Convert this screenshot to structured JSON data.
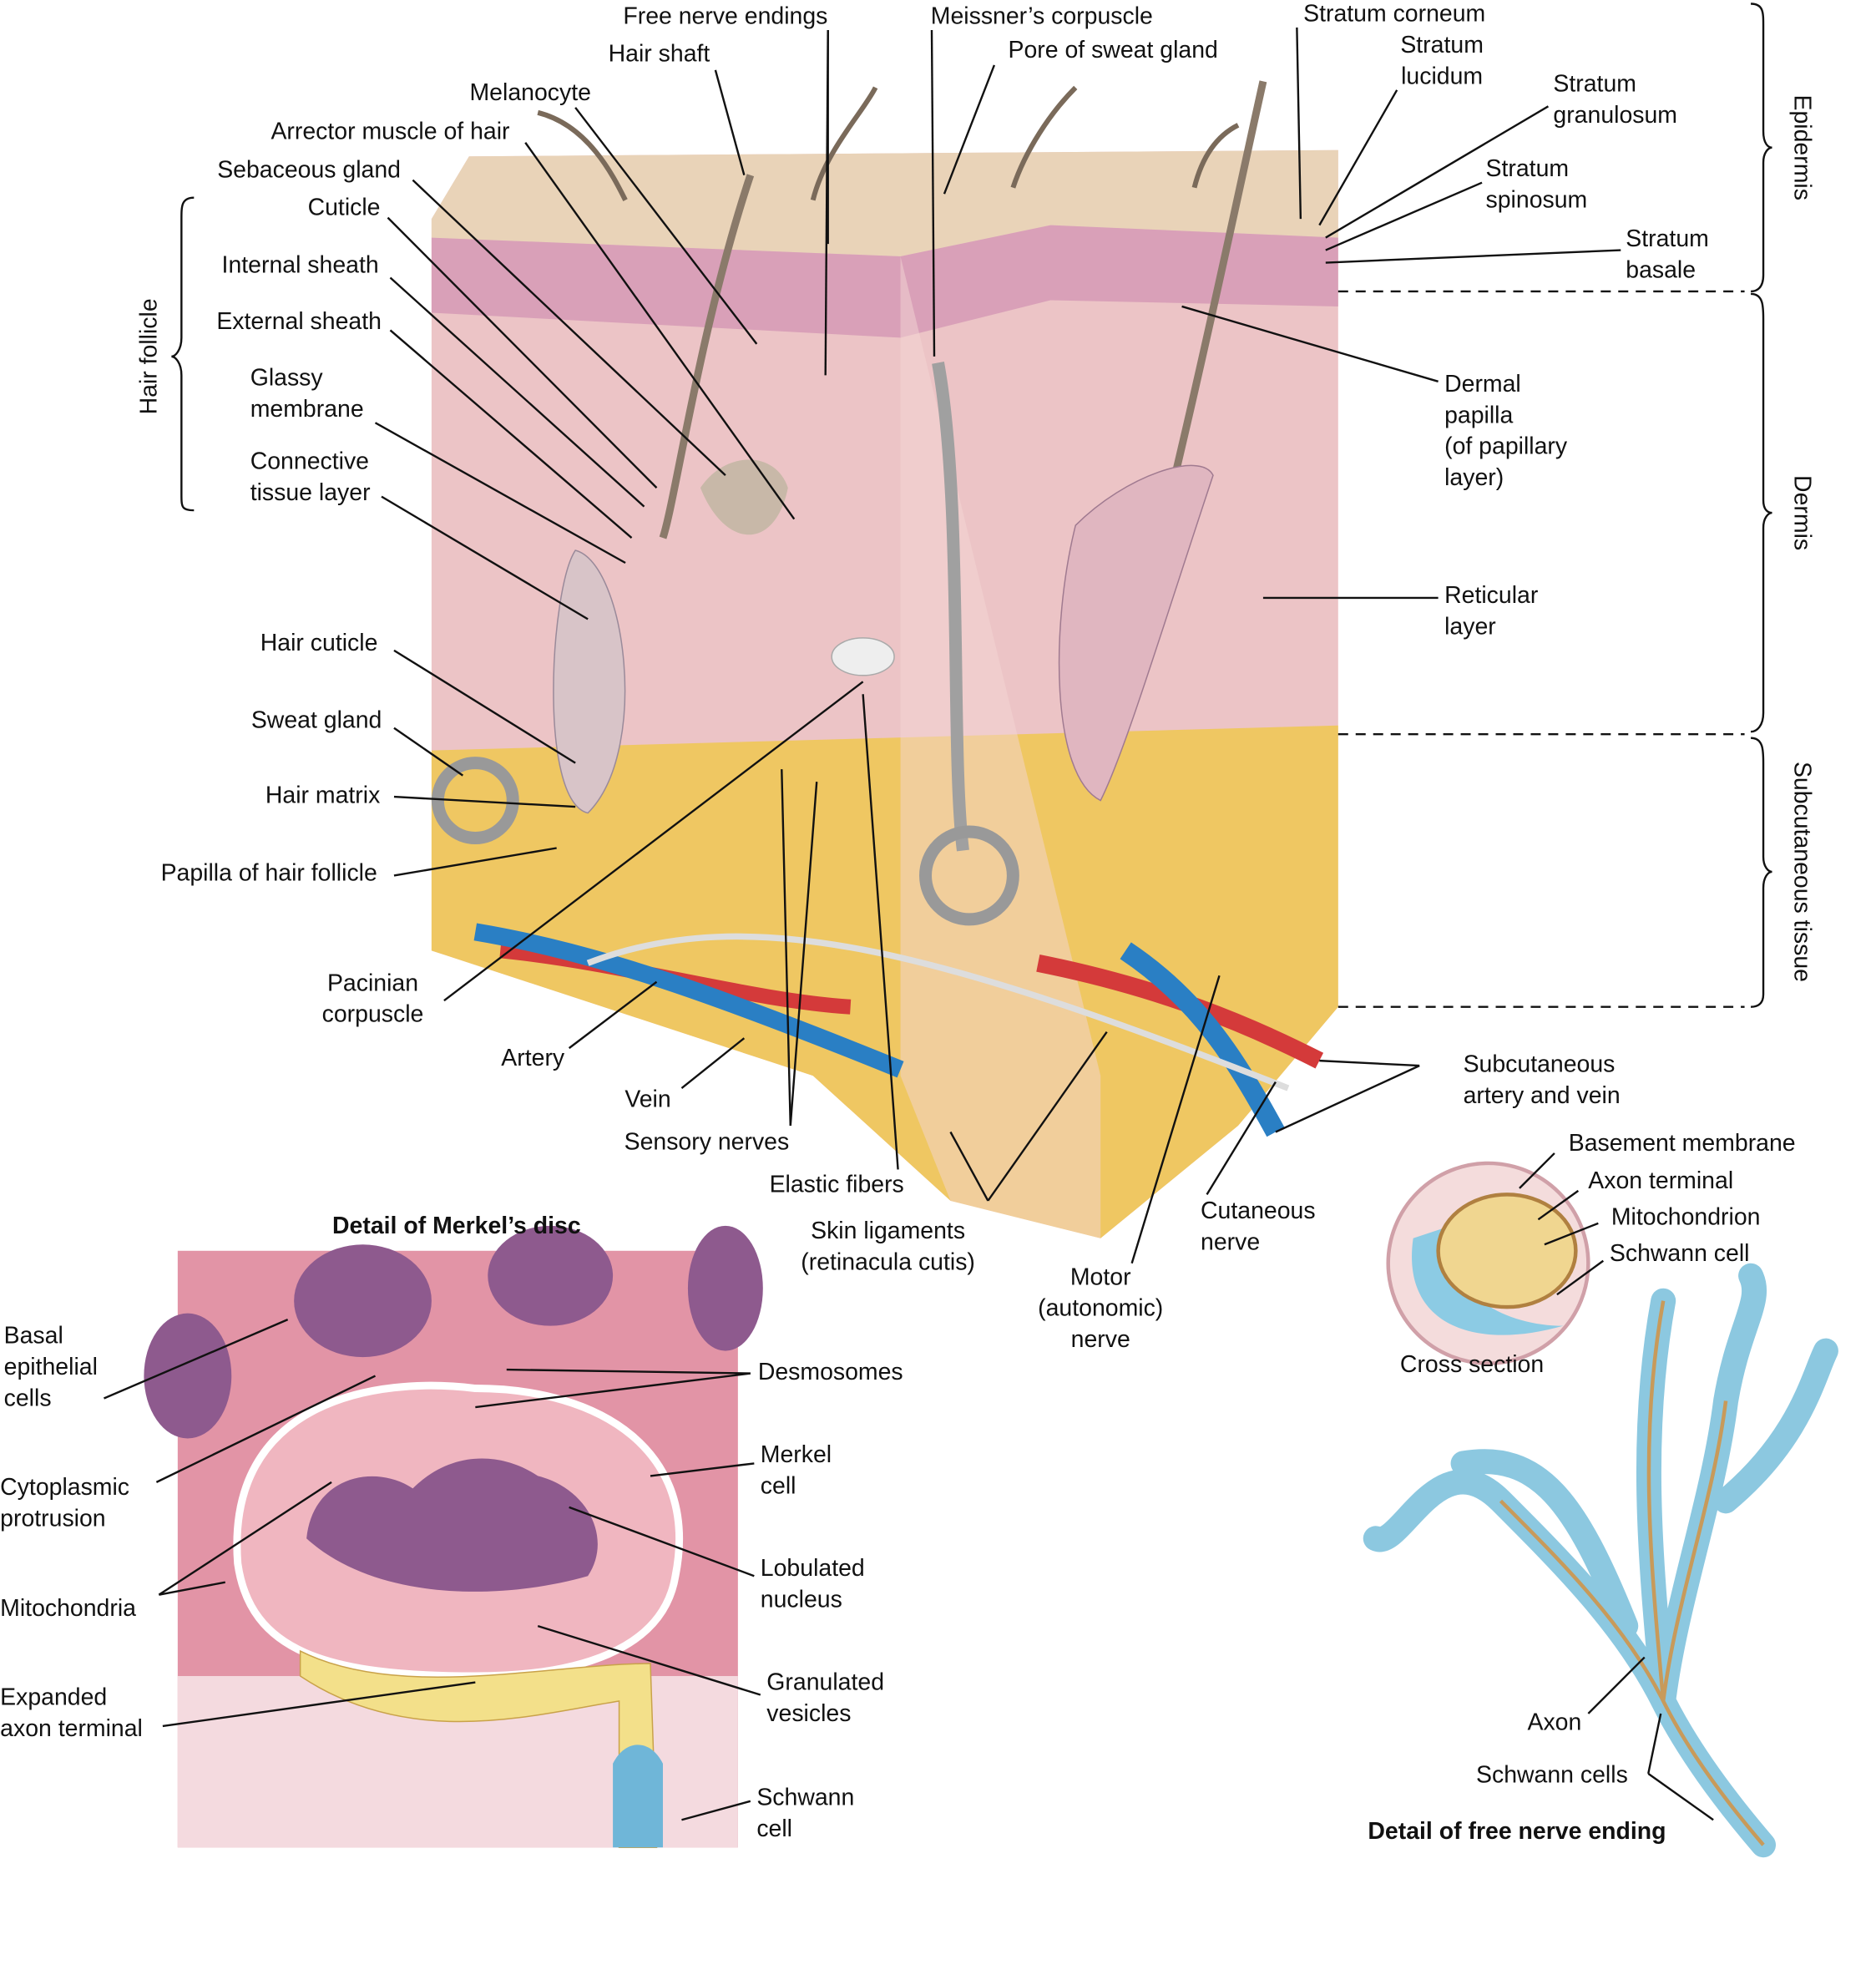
{
  "diagram": {
    "labels": [
      {
        "lines": [
          "Free nerve endings"
        ]
      },
      {
        "lines": [
          "Hair shaft"
        ]
      },
      {
        "lines": [
          "Melanocyte"
        ]
      },
      {
        "lines": [
          "Arrector muscle of hair"
        ]
      },
      {
        "lines": [
          "Sebaceous gland"
        ]
      },
      {
        "lines": [
          "Cuticle"
        ]
      },
      {
        "lines": [
          "Internal sheath"
        ]
      },
      {
        "lines": [
          "External sheath"
        ]
      },
      {
        "lines": [
          "Glassy",
          "membrane"
        ]
      },
      {
        "lines": [
          "Connective",
          "tissue layer"
        ]
      },
      {
        "lines": [
          "Hair cuticle"
        ]
      },
      {
        "lines": [
          "Sweat gland"
        ]
      },
      {
        "lines": [
          "Hair matrix"
        ]
      },
      {
        "lines": [
          "Papilla of hair follicle"
        ]
      },
      {
        "lines": [
          "Pacinian",
          "corpuscle"
        ]
      },
      {
        "lines": [
          "Artery"
        ]
      },
      {
        "lines": [
          "Vein"
        ]
      },
      {
        "lines": [
          "Sensory nerves"
        ]
      },
      {
        "lines": [
          "Elastic fibers"
        ]
      },
      {
        "lines": [
          "Skin ligaments",
          "(retinacula cutis)"
        ]
      },
      {
        "lines": [
          "Meissner’s corpuscle"
        ]
      },
      {
        "lines": [
          "Pore of sweat gland"
        ]
      },
      {
        "lines": [
          "Stratum corneum"
        ]
      },
      {
        "lines": [
          "Stratum",
          "lucidum"
        ]
      },
      {
        "lines": [
          "Stratum",
          "granulosum"
        ]
      },
      {
        "lines": [
          "Stratum",
          "spinosum"
        ]
      },
      {
        "lines": [
          "Stratum",
          "basale"
        ]
      },
      {
        "lines": [
          "Dermal",
          "papilla",
          "(of papillary",
          "layer)"
        ]
      },
      {
        "lines": [
          "Reticular",
          "layer"
        ]
      },
      {
        "lines": [
          "Subcutaneous",
          "artery and vein"
        ]
      },
      {
        "lines": [
          "Cutaneous",
          "nerve"
        ]
      },
      {
        "lines": [
          "Motor",
          "(autonomic)",
          "nerve"
        ]
      }
    ],
    "regions": [
      "Hair follicle",
      "Epidermis",
      "Dermis",
      "Subcutaneous tissue"
    ]
  },
  "merkel_detail": {
    "title": "Detail of Merkel’s disc",
    "labels": [
      {
        "lines": [
          "Basal",
          "epithelial",
          "cells"
        ]
      },
      {
        "lines": [
          "Cytoplasmic",
          "protrusion"
        ]
      },
      {
        "lines": [
          "Mitochondria"
        ]
      },
      {
        "lines": [
          "Expanded",
          "axon terminal"
        ]
      },
      {
        "lines": [
          "Desmosomes"
        ]
      },
      {
        "lines": [
          "Merkel",
          "cell"
        ]
      },
      {
        "lines": [
          "Lobulated",
          "nucleus"
        ]
      },
      {
        "lines": [
          "Granulated",
          "vesicles"
        ]
      },
      {
        "lines": [
          "Schwann",
          "cell"
        ]
      }
    ]
  },
  "nerve_detail": {
    "title": "Detail of free nerve ending",
    "labels": [
      {
        "lines": [
          "Basement membrane"
        ]
      },
      {
        "lines": [
          "Axon terminal"
        ]
      },
      {
        "lines": [
          "Mitochondrion"
        ]
      },
      {
        "lines": [
          "Schwann cell"
        ]
      },
      {
        "lines": [
          "Cross section"
        ]
      },
      {
        "lines": [
          "Axon"
        ]
      },
      {
        "lines": [
          "Schwann cells"
        ]
      }
    ]
  }
}
